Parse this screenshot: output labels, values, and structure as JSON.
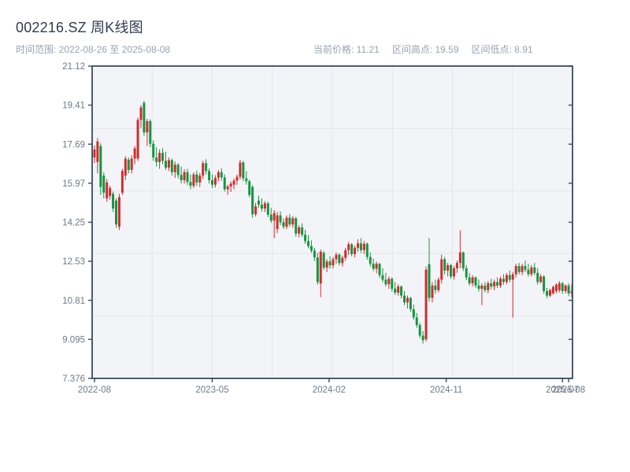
{
  "header": {
    "title": "002216.SZ 周K线图",
    "subtitle": "时间范围: 2022-08-26 至 2025-08-08",
    "stats": [
      "当前价格: 11.21",
      "区间高点: 19.59",
      "区间低点: 8.91"
    ]
  },
  "chart_data": {
    "type": "candlestick",
    "title": "002216.SZ 周K线图",
    "interval": "weekly",
    "date_range": [
      "2022-08-26",
      "2025-08-08"
    ],
    "current_price": 11.21,
    "range_high": 19.59,
    "range_low": 8.91,
    "ylim": [
      7.376,
      21.12
    ],
    "grid": "on",
    "y_ticks": [
      {
        "label": "21.12",
        "value": 21.12
      },
      {
        "label": "19.41",
        "value": 19.402
      },
      {
        "label": "17.69",
        "value": 17.684
      },
      {
        "label": "15.97",
        "value": 15.966
      },
      {
        "label": "14.25",
        "value": 14.248
      },
      {
        "label": "12.53",
        "value": 12.53
      },
      {
        "label": "10.81",
        "value": 10.812
      },
      {
        "label": "9.095",
        "value": 9.094
      },
      {
        "label": "7.376",
        "value": 7.376
      }
    ],
    "x_ticks": [
      {
        "label": "2022-08",
        "week": 0
      },
      {
        "label": "2023-05",
        "week": 38
      },
      {
        "label": "2024-02",
        "week": 75.7
      },
      {
        "label": "2024-11",
        "week": 113.5
      },
      {
        "label": "2025-07",
        "week": 151
      },
      {
        "label": "2025-08",
        "week": 153
      }
    ],
    "colors": {
      "up": "#cc2f2f",
      "down": "#179441",
      "grid": "#e4e6eb",
      "spine": "#3d4a5d",
      "plot_bg": "#f3f4f7",
      "tick_text": "#6e7a8a"
    },
    "candles": [
      [
        17.1,
        17.62,
        16.85,
        17.45
      ],
      [
        16.9,
        17.95,
        16.4,
        17.8
      ],
      [
        17.6,
        17.72,
        15.45,
        15.8
      ],
      [
        16.3,
        16.45,
        15.3,
        15.55
      ],
      [
        15.3,
        16.15,
        15.15,
        16.0
      ],
      [
        15.4,
        15.85,
        15.25,
        15.75
      ],
      [
        15.5,
        15.6,
        14.7,
        14.85
      ],
      [
        15.2,
        15.3,
        14.0,
        14.15
      ],
      [
        14.05,
        15.5,
        13.9,
        15.35
      ],
      [
        15.55,
        16.6,
        15.45,
        16.5
      ],
      [
        16.3,
        17.15,
        16.1,
        17.05
      ],
      [
        17.0,
        17.1,
        16.4,
        16.55
      ],
      [
        16.55,
        17.2,
        16.4,
        17.05
      ],
      [
        17.05,
        17.6,
        16.8,
        17.5
      ],
      [
        17.05,
        18.85,
        16.95,
        18.75
      ],
      [
        18.75,
        19.4,
        18.4,
        19.3
      ],
      [
        19.5,
        19.59,
        18.05,
        18.2
      ],
      [
        18.2,
        18.8,
        17.6,
        18.7
      ],
      [
        18.7,
        18.78,
        17.55,
        17.7
      ],
      [
        17.7,
        17.85,
        16.95,
        17.1
      ],
      [
        17.1,
        17.55,
        16.7,
        16.9
      ],
      [
        16.9,
        17.45,
        16.6,
        17.3
      ],
      [
        17.3,
        17.5,
        16.8,
        16.95
      ],
      [
        16.95,
        17.35,
        16.55,
        16.65
      ],
      [
        16.65,
        17.1,
        16.5,
        16.98
      ],
      [
        16.98,
        17.05,
        16.3,
        16.45
      ],
      [
        16.45,
        16.92,
        16.2,
        16.78
      ],
      [
        16.78,
        16.85,
        16.18,
        16.33
      ],
      [
        16.33,
        16.7,
        15.95,
        16.1
      ],
      [
        16.1,
        16.58,
        15.95,
        16.45
      ],
      [
        16.45,
        16.6,
        15.88,
        16.02
      ],
      [
        16.02,
        16.35,
        15.7,
        15.85
      ],
      [
        15.85,
        16.45,
        15.75,
        16.35
      ],
      [
        16.35,
        16.52,
        15.85,
        16.0
      ],
      [
        16.0,
        16.42,
        15.8,
        16.3
      ],
      [
        16.3,
        16.95,
        16.15,
        16.85
      ],
      [
        16.85,
        17.02,
        16.35,
        16.5
      ],
      [
        16.5,
        16.62,
        15.95,
        16.1
      ],
      [
        16.1,
        16.35,
        15.75,
        15.9
      ],
      [
        15.9,
        16.32,
        15.78,
        16.2
      ],
      [
        16.2,
        16.55,
        16.05,
        16.45
      ],
      [
        16.45,
        16.62,
        16.08,
        16.22
      ],
      [
        16.22,
        16.35,
        15.6,
        15.7
      ],
      [
        15.7,
        15.9,
        15.45,
        15.82
      ],
      [
        15.82,
        16.05,
        15.58,
        15.95
      ],
      [
        15.9,
        16.18,
        15.7,
        16.08
      ],
      [
        16.08,
        16.35,
        15.9,
        16.25
      ],
      [
        16.25,
        17.0,
        16.12,
        16.88
      ],
      [
        16.88,
        16.95,
        16.05,
        16.18
      ],
      [
        16.18,
        16.5,
        15.9,
        16.05
      ],
      [
        16.05,
        16.12,
        15.35,
        15.45
      ],
      [
        15.8,
        15.88,
        14.45,
        14.6
      ],
      [
        14.6,
        15.1,
        14.5,
        14.95
      ],
      [
        15.2,
        15.42,
        14.88,
        15.02
      ],
      [
        15.02,
        15.3,
        14.72,
        14.85
      ],
      [
        14.85,
        15.18,
        14.7,
        15.08
      ],
      [
        15.08,
        15.15,
        14.48,
        14.58
      ],
      [
        14.58,
        14.88,
        14.22,
        14.32
      ],
      [
        14.32,
        14.78,
        13.55,
        14.65
      ],
      [
        13.95,
        14.7,
        13.78,
        14.55
      ],
      [
        14.55,
        14.72,
        14.12,
        14.25
      ],
      [
        14.25,
        14.42,
        13.95,
        14.05
      ],
      [
        14.05,
        14.55,
        13.95,
        14.45
      ],
      [
        14.45,
        14.6,
        14.05,
        14.15
      ],
      [
        14.15,
        14.52,
        14.0,
        14.42
      ],
      [
        14.42,
        14.48,
        13.62,
        13.75
      ],
      [
        13.75,
        14.12,
        13.58,
        14.02
      ],
      [
        14.02,
        14.2,
        13.6,
        13.7
      ],
      [
        13.7,
        13.92,
        13.3,
        13.42
      ],
      [
        13.42,
        13.68,
        13.1,
        13.2
      ],
      [
        13.2,
        13.45,
        12.9,
        13.0
      ],
      [
        13.0,
        13.12,
        12.55,
        12.7
      ],
      [
        12.7,
        12.9,
        11.5,
        11.62
      ],
      [
        11.55,
        13.05,
        10.95,
        12.95
      ],
      [
        12.9,
        12.98,
        12.15,
        12.25
      ],
      [
        12.25,
        12.62,
        12.05,
        12.52
      ],
      [
        12.52,
        12.75,
        12.2,
        12.35
      ],
      [
        12.35,
        12.72,
        12.22,
        12.62
      ],
      [
        12.62,
        12.92,
        12.42,
        12.82
      ],
      [
        12.82,
        12.88,
        12.35,
        12.45
      ],
      [
        12.45,
        12.78,
        12.3,
        12.68
      ],
      [
        12.68,
        13.12,
        12.55,
        13.02
      ],
      [
        13.02,
        13.38,
        12.82,
        13.28
      ],
      [
        13.28,
        13.32,
        12.75,
        12.85
      ],
      [
        12.85,
        13.22,
        12.7,
        13.12
      ],
      [
        13.12,
        13.5,
        12.95,
        13.32
      ],
      [
        13.32,
        13.55,
        12.9,
        13.02
      ],
      [
        13.02,
        13.42,
        12.85,
        13.3
      ],
      [
        13.3,
        13.36,
        12.6,
        12.72
      ],
      [
        12.72,
        12.92,
        12.3,
        12.42
      ],
      [
        12.42,
        12.65,
        12.1,
        12.2
      ],
      [
        12.2,
        12.52,
        12.0,
        12.42
      ],
      [
        12.42,
        12.46,
        11.8,
        11.92
      ],
      [
        11.92,
        12.22,
        11.6,
        11.72
      ],
      [
        11.72,
        12.02,
        11.42,
        11.52
      ],
      [
        11.52,
        11.86,
        11.32,
        11.76
      ],
      [
        11.76,
        11.82,
        11.2,
        11.32
      ],
      [
        11.32,
        11.62,
        11.05,
        11.15
      ],
      [
        11.15,
        11.52,
        11.02,
        11.42
      ],
      [
        11.42,
        11.46,
        10.9,
        11.02
      ],
      [
        11.02,
        11.22,
        10.6,
        10.72
      ],
      [
        10.72,
        11.02,
        10.45,
        10.92
      ],
      [
        10.92,
        10.96,
        10.3,
        10.42
      ],
      [
        10.42,
        10.62,
        9.95,
        10.06
      ],
      [
        10.06,
        10.26,
        9.6,
        9.72
      ],
      [
        9.72,
        9.82,
        9.15,
        9.26
      ],
      [
        9.26,
        9.46,
        8.91,
        9.06
      ],
      [
        9.1,
        12.3,
        9.0,
        12.16
      ],
      [
        12.4,
        13.55,
        10.75,
        10.92
      ],
      [
        10.92,
        11.62,
        10.72,
        11.46
      ],
      [
        11.46,
        11.72,
        11.1,
        11.26
      ],
      [
        11.26,
        11.82,
        11.16,
        11.72
      ],
      [
        11.72,
        12.82,
        11.55,
        12.62
      ],
      [
        12.62,
        12.72,
        11.95,
        12.12
      ],
      [
        12.12,
        12.46,
        11.86,
        12.36
      ],
      [
        12.36,
        12.42,
        11.76,
        11.86
      ],
      [
        11.86,
        12.32,
        11.72,
        12.22
      ],
      [
        12.22,
        12.56,
        12.02,
        12.46
      ],
      [
        12.46,
        13.9,
        12.22,
        12.92
      ],
      [
        12.92,
        12.96,
        12.1,
        12.22
      ],
      [
        12.22,
        12.36,
        11.7,
        11.82
      ],
      [
        11.82,
        12.02,
        11.46,
        11.56
      ],
      [
        11.56,
        11.92,
        11.42,
        11.82
      ],
      [
        11.82,
        11.86,
        11.36,
        11.46
      ],
      [
        11.46,
        11.72,
        11.2,
        11.32
      ],
      [
        11.32,
        11.56,
        10.6,
        11.46
      ],
      [
        11.46,
        11.62,
        11.16,
        11.26
      ],
      [
        11.26,
        11.66,
        11.12,
        11.56
      ],
      [
        11.56,
        11.76,
        11.3,
        11.42
      ],
      [
        11.42,
        11.72,
        11.26,
        11.62
      ],
      [
        11.62,
        11.82,
        11.36,
        11.46
      ],
      [
        11.46,
        11.86,
        11.36,
        11.76
      ],
      [
        11.76,
        11.96,
        11.5,
        11.62
      ],
      [
        11.62,
        12.02,
        11.52,
        11.92
      ],
      [
        11.92,
        12.12,
        11.6,
        11.72
      ],
      [
        11.72,
        12.06,
        10.05,
        11.96
      ],
      [
        11.96,
        12.42,
        11.82,
        12.32
      ],
      [
        12.32,
        12.46,
        11.95,
        12.06
      ],
      [
        12.06,
        12.42,
        11.92,
        12.32
      ],
      [
        12.32,
        12.56,
        12.05,
        12.16
      ],
      [
        12.16,
        12.42,
        11.86,
        11.96
      ],
      [
        11.96,
        12.36,
        11.86,
        12.26
      ],
      [
        12.26,
        12.46,
        11.92,
        12.02
      ],
      [
        12.02,
        12.22,
        11.5,
        11.62
      ],
      [
        11.62,
        11.96,
        11.56,
        11.86
      ],
      [
        11.86,
        11.92,
        11.1,
        11.22
      ],
      [
        11.22,
        11.36,
        10.9,
        11.02
      ],
      [
        11.02,
        11.32,
        10.95,
        11.26
      ],
      [
        11.12,
        11.46,
        11.06,
        11.4
      ],
      [
        11.22,
        11.56,
        11.12,
        11.5
      ],
      [
        11.26,
        11.66,
        11.16,
        11.56
      ],
      [
        11.56,
        11.62,
        11.1,
        11.22
      ],
      [
        11.22,
        11.52,
        11.12,
        11.46
      ],
      [
        11.46,
        11.56,
        11.0,
        11.12
      ],
      [
        11.12,
        11.52,
        10.95,
        11.21
      ]
    ]
  }
}
